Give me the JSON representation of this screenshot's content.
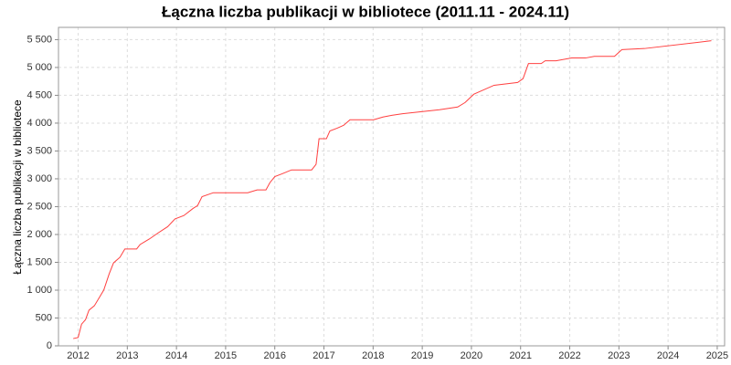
{
  "chart_data": {
    "type": "line",
    "title": "Łączna liczba publikacji w bibliotece (2011.11 - 2024.11)",
    "y_label": "Łączna liczba publikacji w bibliotece",
    "xlim": [
      2011.6,
      2025.15
    ],
    "xticks": [
      2012,
      2013,
      2014,
      2015,
      2016,
      2017,
      2018,
      2019,
      2020,
      2021,
      2022,
      2023,
      2024,
      2025
    ],
    "ylim": [
      0,
      5720
    ],
    "yticks": [
      0,
      500,
      {
        "value": 1000,
        "label": "1 000"
      },
      {
        "value": 1500,
        "label": "1 500"
      },
      {
        "value": 2000,
        "label": "2 000"
      },
      {
        "value": 2500,
        "label": "2 500"
      },
      {
        "value": 3000,
        "label": "3 000"
      },
      {
        "value": 3500,
        "label": "3 500"
      },
      {
        "value": 4000,
        "label": "4 000"
      },
      {
        "value": 4500,
        "label": "4 500"
      },
      {
        "value": 5000,
        "label": "5 000"
      },
      {
        "value": 5500,
        "label": "5 500"
      }
    ],
    "grid": true,
    "series": [
      {
        "color": "#ff4040",
        "x": [
          2011.9,
          2012.0,
          2012.07,
          2012.15,
          2012.22,
          2012.33,
          2012.52,
          2012.63,
          2012.72,
          2012.85,
          2012.95,
          2013.19,
          2013.26,
          2013.45,
          2013.63,
          2013.82,
          2013.97,
          2014.15,
          2014.34,
          2014.43,
          2014.52,
          2014.75,
          2015.45,
          2015.64,
          2015.82,
          2015.9,
          2016.0,
          2016.15,
          2016.34,
          2016.75,
          2016.84,
          2016.9,
          2017.05,
          2017.12,
          2017.27,
          2017.4,
          2017.53,
          2018.01,
          2018.2,
          2018.38,
          2018.6,
          2019.35,
          2019.72,
          2019.87,
          2020.05,
          2020.46,
          2020.94,
          2021.05,
          2021.16,
          2021.42,
          2021.5,
          2021.72,
          2022.04,
          2022.32,
          2022.5,
          2022.91,
          2023.06,
          2023.52,
          2024.88
        ],
        "values": [
          130,
          150,
          390,
          470,
          640,
          720,
          1000,
          1290,
          1490,
          1590,
          1740,
          1740,
          1820,
          1920,
          2030,
          2140,
          2280,
          2340,
          2470,
          2520,
          2680,
          2750,
          2750,
          2800,
          2800,
          2930,
          3040,
          3090,
          3160,
          3160,
          3260,
          3720,
          3720,
          3860,
          3910,
          3960,
          4060,
          4060,
          4110,
          4140,
          4170,
          4240,
          4290,
          4370,
          4520,
          4680,
          4730,
          4800,
          5070,
          5070,
          5120,
          5120,
          5170,
          5170,
          5200,
          5200,
          5320,
          5340,
          5480
        ]
      }
    ]
  }
}
